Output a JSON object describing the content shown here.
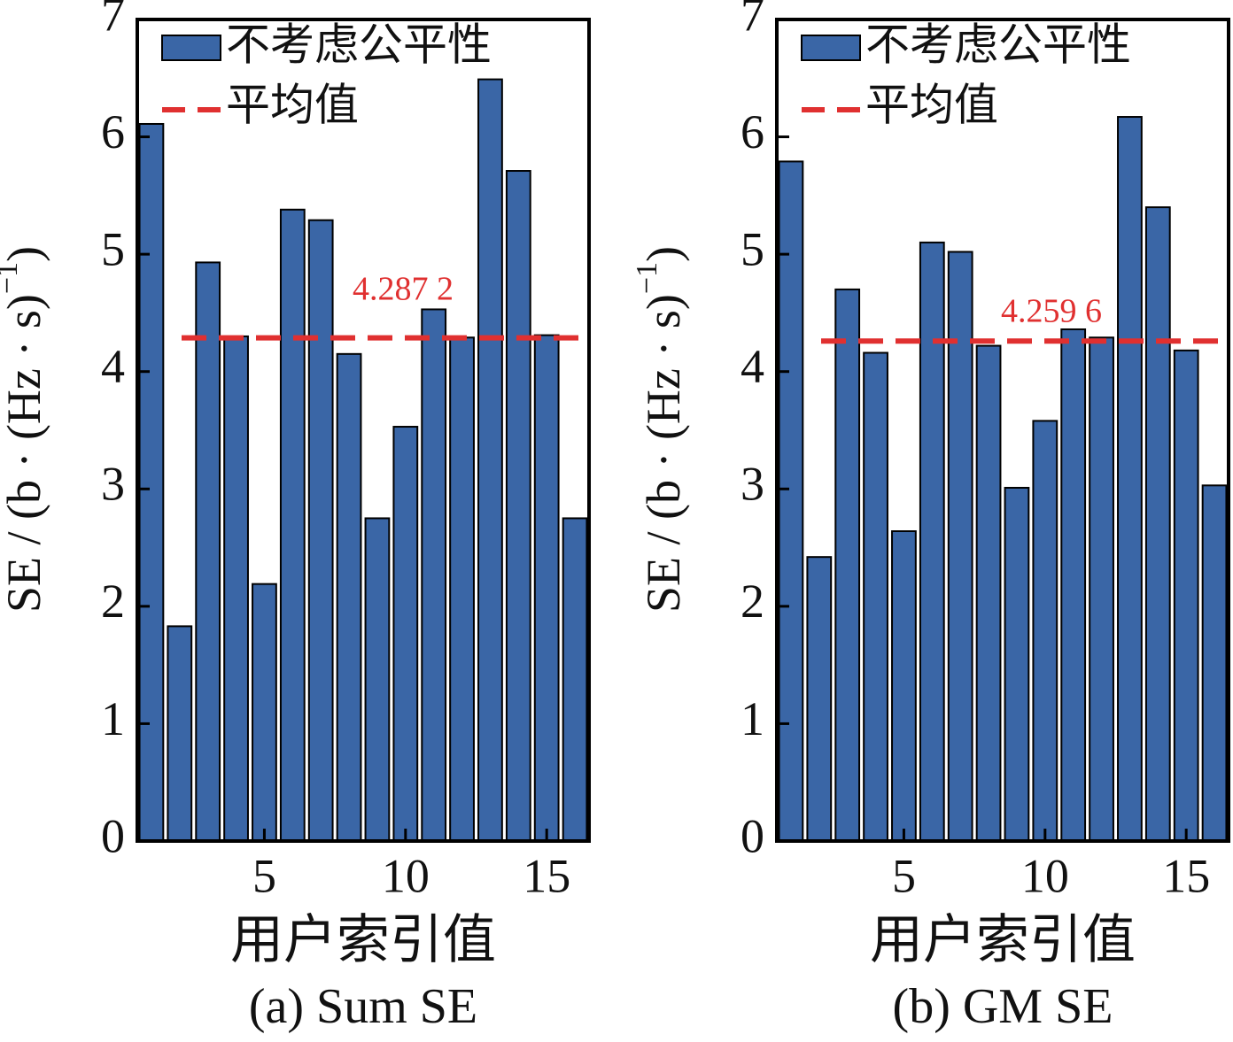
{
  "chart_data": [
    {
      "type": "bar",
      "caption": "(a) Sum SE",
      "xlabel": "用户索引值",
      "ylabel": [
        "SE / (b · (Hz · s)",
        "−1",
        ")"
      ],
      "x": [
        1,
        2,
        3,
        4,
        5,
        6,
        7,
        8,
        9,
        10,
        11,
        12,
        13,
        14,
        15,
        16
      ],
      "series": [
        {
          "name": "不考虑公平性",
          "color": "#3a66a6",
          "values": [
            6.11,
            1.83,
            4.93,
            4.3,
            2.19,
            5.38,
            5.29,
            4.15,
            2.75,
            3.53,
            4.53,
            4.29,
            6.49,
            5.71,
            4.31,
            2.75
          ]
        }
      ],
      "mean": {
        "name": "平均值",
        "value": 4.2872,
        "label": "4.287 2",
        "color": "#e03030"
      },
      "xlim": [
        0.5,
        16.5
      ],
      "xticks": [
        5,
        10,
        15
      ],
      "ylim": [
        0,
        7
      ],
      "yticks": [
        0,
        1,
        2,
        3,
        4,
        5,
        6,
        7
      ],
      "legend": "upper left"
    },
    {
      "type": "bar",
      "caption": "(b) GM SE",
      "xlabel": "用户索引值",
      "ylabel": [
        "SE / (b · (Hz · s)",
        "−1",
        ")"
      ],
      "x": [
        1,
        2,
        3,
        4,
        5,
        6,
        7,
        8,
        9,
        10,
        11,
        12,
        13,
        14,
        15,
        16
      ],
      "series": [
        {
          "name": "不考虑公平性",
          "color": "#3a66a6",
          "values": [
            5.79,
            2.42,
            4.7,
            4.16,
            2.64,
            5.1,
            5.02,
            4.22,
            3.01,
            3.58,
            4.36,
            4.29,
            6.17,
            5.4,
            4.18,
            3.03
          ]
        }
      ],
      "mean": {
        "name": "平均值",
        "value": 4.2596,
        "label": "4.259 6",
        "color": "#e03030"
      },
      "xlim": [
        0.5,
        16.5
      ],
      "xticks": [
        5,
        10,
        15
      ],
      "ylim": [
        0,
        7
      ],
      "yticks": [
        0,
        1,
        2,
        3,
        4,
        5,
        6,
        7
      ],
      "legend": "upper left"
    }
  ]
}
